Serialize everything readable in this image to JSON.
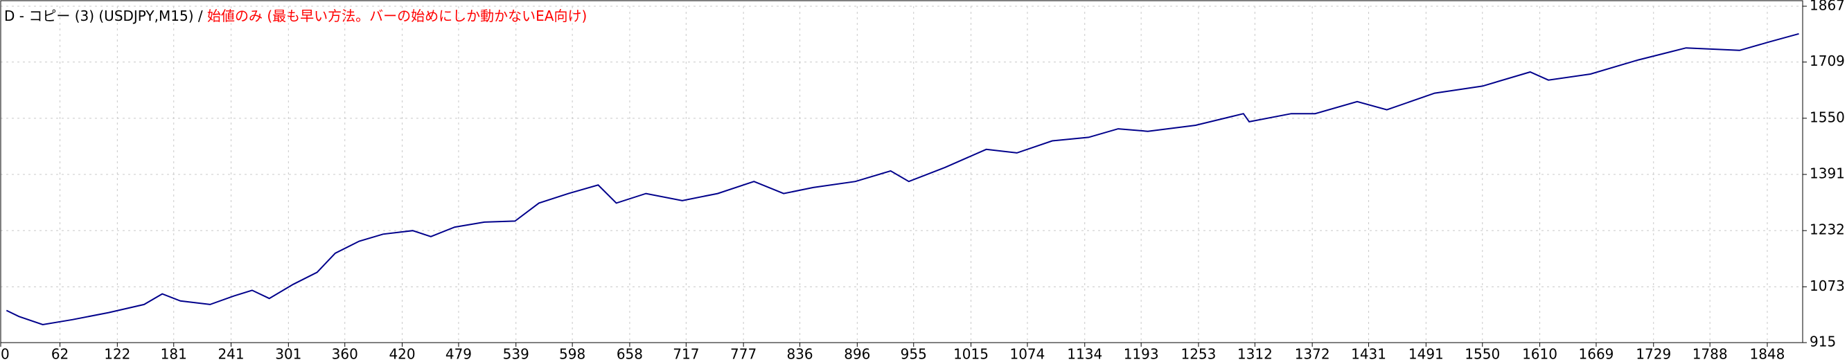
{
  "chart_data": {
    "type": "line",
    "title": "D - コピー (3) (USDJPY,M15) / ",
    "subtitle": "始値のみ (最も早い方法。バーの始めにしか動かないEA向け)",
    "x": [
      6,
      19,
      44,
      75,
      113,
      150,
      169,
      188,
      219,
      244,
      263,
      281,
      306,
      331,
      350,
      375,
      400,
      431,
      450,
      475,
      506,
      538,
      563,
      594,
      625,
      644,
      675,
      713,
      750,
      788,
      819,
      850,
      894,
      931,
      950,
      988,
      1031,
      1063,
      1100,
      1138,
      1169,
      1200,
      1250,
      1300,
      1306,
      1350,
      1375,
      1419,
      1450,
      1500,
      1550,
      1600,
      1619,
      1663,
      1713,
      1763,
      1819,
      1850,
      1881
    ],
    "values": [
      1006,
      989,
      966,
      980,
      1000,
      1023,
      1053,
      1033,
      1023,
      1047,
      1063,
      1040,
      1080,
      1114,
      1168,
      1202,
      1222,
      1232,
      1215,
      1242,
      1256,
      1259,
      1310,
      1337,
      1361,
      1310,
      1337,
      1317,
      1337,
      1371,
      1337,
      1354,
      1371,
      1401,
      1371,
      1411,
      1462,
      1452,
      1486,
      1496,
      1520,
      1513,
      1530,
      1563,
      1540,
      1563,
      1563,
      1597,
      1574,
      1621,
      1641,
      1681,
      1658,
      1675,
      1715,
      1749,
      1742,
      1766,
      1789
    ],
    "color": "#00008b",
    "xlim": [
      0,
      1885
    ],
    "ylim": [
      915,
      1867
    ],
    "xticks": [
      0,
      62,
      122,
      181,
      241,
      301,
      360,
      420,
      479,
      539,
      598,
      658,
      717,
      777,
      836,
      896,
      955,
      1015,
      1074,
      1134,
      1193,
      1253,
      1312,
      1372,
      1431,
      1491,
      1550,
      1610,
      1669,
      1729,
      1788,
      1848
    ],
    "yticks": [
      915,
      1073,
      1232,
      1391,
      1550,
      1709,
      1867
    ],
    "grid": true
  }
}
